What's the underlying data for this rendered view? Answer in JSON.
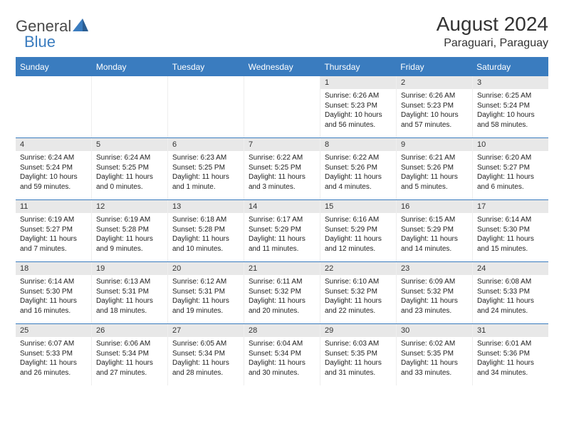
{
  "logo": {
    "text1": "General",
    "text2": "Blue",
    "color1": "#5a5a5a",
    "color2": "#3a7cbf"
  },
  "title": "August 2024",
  "location": "Paraguari, Paraguay",
  "colors": {
    "header_bg": "#3a7cbf",
    "header_text": "#ffffff",
    "daynum_bg": "#e8e8e8",
    "row_border": "#3a7cbf",
    "text": "#222222"
  },
  "weekdays": [
    "Sunday",
    "Monday",
    "Tuesday",
    "Wednesday",
    "Thursday",
    "Friday",
    "Saturday"
  ],
  "weeks": [
    [
      {
        "n": "",
        "sr": "",
        "ss": "",
        "dl": ""
      },
      {
        "n": "",
        "sr": "",
        "ss": "",
        "dl": ""
      },
      {
        "n": "",
        "sr": "",
        "ss": "",
        "dl": ""
      },
      {
        "n": "",
        "sr": "",
        "ss": "",
        "dl": ""
      },
      {
        "n": "1",
        "sr": "Sunrise: 6:26 AM",
        "ss": "Sunset: 5:23 PM",
        "dl": "Daylight: 10 hours and 56 minutes."
      },
      {
        "n": "2",
        "sr": "Sunrise: 6:26 AM",
        "ss": "Sunset: 5:23 PM",
        "dl": "Daylight: 10 hours and 57 minutes."
      },
      {
        "n": "3",
        "sr": "Sunrise: 6:25 AM",
        "ss": "Sunset: 5:24 PM",
        "dl": "Daylight: 10 hours and 58 minutes."
      }
    ],
    [
      {
        "n": "4",
        "sr": "Sunrise: 6:24 AM",
        "ss": "Sunset: 5:24 PM",
        "dl": "Daylight: 10 hours and 59 minutes."
      },
      {
        "n": "5",
        "sr": "Sunrise: 6:24 AM",
        "ss": "Sunset: 5:25 PM",
        "dl": "Daylight: 11 hours and 0 minutes."
      },
      {
        "n": "6",
        "sr": "Sunrise: 6:23 AM",
        "ss": "Sunset: 5:25 PM",
        "dl": "Daylight: 11 hours and 1 minute."
      },
      {
        "n": "7",
        "sr": "Sunrise: 6:22 AM",
        "ss": "Sunset: 5:25 PM",
        "dl": "Daylight: 11 hours and 3 minutes."
      },
      {
        "n": "8",
        "sr": "Sunrise: 6:22 AM",
        "ss": "Sunset: 5:26 PM",
        "dl": "Daylight: 11 hours and 4 minutes."
      },
      {
        "n": "9",
        "sr": "Sunrise: 6:21 AM",
        "ss": "Sunset: 5:26 PM",
        "dl": "Daylight: 11 hours and 5 minutes."
      },
      {
        "n": "10",
        "sr": "Sunrise: 6:20 AM",
        "ss": "Sunset: 5:27 PM",
        "dl": "Daylight: 11 hours and 6 minutes."
      }
    ],
    [
      {
        "n": "11",
        "sr": "Sunrise: 6:19 AM",
        "ss": "Sunset: 5:27 PM",
        "dl": "Daylight: 11 hours and 7 minutes."
      },
      {
        "n": "12",
        "sr": "Sunrise: 6:19 AM",
        "ss": "Sunset: 5:28 PM",
        "dl": "Daylight: 11 hours and 9 minutes."
      },
      {
        "n": "13",
        "sr": "Sunrise: 6:18 AM",
        "ss": "Sunset: 5:28 PM",
        "dl": "Daylight: 11 hours and 10 minutes."
      },
      {
        "n": "14",
        "sr": "Sunrise: 6:17 AM",
        "ss": "Sunset: 5:29 PM",
        "dl": "Daylight: 11 hours and 11 minutes."
      },
      {
        "n": "15",
        "sr": "Sunrise: 6:16 AM",
        "ss": "Sunset: 5:29 PM",
        "dl": "Daylight: 11 hours and 12 minutes."
      },
      {
        "n": "16",
        "sr": "Sunrise: 6:15 AM",
        "ss": "Sunset: 5:29 PM",
        "dl": "Daylight: 11 hours and 14 minutes."
      },
      {
        "n": "17",
        "sr": "Sunrise: 6:14 AM",
        "ss": "Sunset: 5:30 PM",
        "dl": "Daylight: 11 hours and 15 minutes."
      }
    ],
    [
      {
        "n": "18",
        "sr": "Sunrise: 6:14 AM",
        "ss": "Sunset: 5:30 PM",
        "dl": "Daylight: 11 hours and 16 minutes."
      },
      {
        "n": "19",
        "sr": "Sunrise: 6:13 AM",
        "ss": "Sunset: 5:31 PM",
        "dl": "Daylight: 11 hours and 18 minutes."
      },
      {
        "n": "20",
        "sr": "Sunrise: 6:12 AM",
        "ss": "Sunset: 5:31 PM",
        "dl": "Daylight: 11 hours and 19 minutes."
      },
      {
        "n": "21",
        "sr": "Sunrise: 6:11 AM",
        "ss": "Sunset: 5:32 PM",
        "dl": "Daylight: 11 hours and 20 minutes."
      },
      {
        "n": "22",
        "sr": "Sunrise: 6:10 AM",
        "ss": "Sunset: 5:32 PM",
        "dl": "Daylight: 11 hours and 22 minutes."
      },
      {
        "n": "23",
        "sr": "Sunrise: 6:09 AM",
        "ss": "Sunset: 5:32 PM",
        "dl": "Daylight: 11 hours and 23 minutes."
      },
      {
        "n": "24",
        "sr": "Sunrise: 6:08 AM",
        "ss": "Sunset: 5:33 PM",
        "dl": "Daylight: 11 hours and 24 minutes."
      }
    ],
    [
      {
        "n": "25",
        "sr": "Sunrise: 6:07 AM",
        "ss": "Sunset: 5:33 PM",
        "dl": "Daylight: 11 hours and 26 minutes."
      },
      {
        "n": "26",
        "sr": "Sunrise: 6:06 AM",
        "ss": "Sunset: 5:34 PM",
        "dl": "Daylight: 11 hours and 27 minutes."
      },
      {
        "n": "27",
        "sr": "Sunrise: 6:05 AM",
        "ss": "Sunset: 5:34 PM",
        "dl": "Daylight: 11 hours and 28 minutes."
      },
      {
        "n": "28",
        "sr": "Sunrise: 6:04 AM",
        "ss": "Sunset: 5:34 PM",
        "dl": "Daylight: 11 hours and 30 minutes."
      },
      {
        "n": "29",
        "sr": "Sunrise: 6:03 AM",
        "ss": "Sunset: 5:35 PM",
        "dl": "Daylight: 11 hours and 31 minutes."
      },
      {
        "n": "30",
        "sr": "Sunrise: 6:02 AM",
        "ss": "Sunset: 5:35 PM",
        "dl": "Daylight: 11 hours and 33 minutes."
      },
      {
        "n": "31",
        "sr": "Sunrise: 6:01 AM",
        "ss": "Sunset: 5:36 PM",
        "dl": "Daylight: 11 hours and 34 minutes."
      }
    ]
  ]
}
